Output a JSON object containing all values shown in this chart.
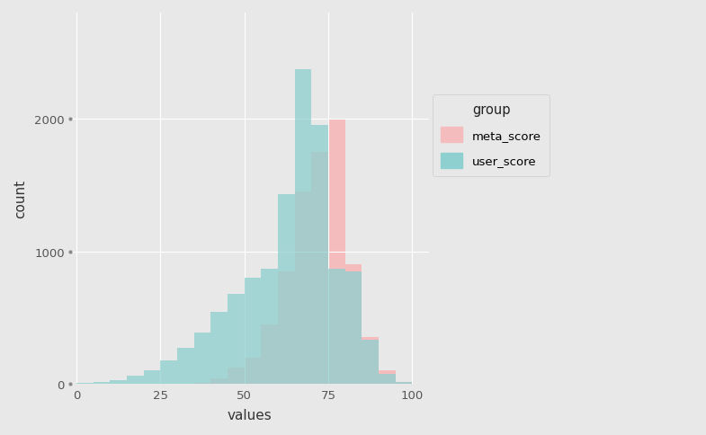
{
  "title": "",
  "xlabel": "values",
  "ylabel": "count",
  "legend_title": "group",
  "legend_labels": [
    "meta_score",
    "user_score"
  ],
  "meta_color": "#F4BCBC",
  "user_color": "#8ECFCF",
  "background_color": "#E8E8E8",
  "grid_color": "#FFFFFF",
  "xlim": [
    -2,
    105
  ],
  "ylim": [
    0,
    2800
  ],
  "yticks": [
    0,
    1000,
    2000
  ],
  "xticks": [
    0,
    25,
    50,
    75,
    100
  ],
  "bin_edges": [
    0,
    5,
    10,
    15,
    20,
    25,
    30,
    35,
    40,
    45,
    50,
    55,
    60,
    65,
    70,
    75,
    80,
    85,
    90,
    95,
    100
  ],
  "meta_counts": [
    0,
    0,
    0,
    0,
    0,
    0,
    0,
    10,
    40,
    120,
    200,
    450,
    850,
    1450,
    1750,
    2000,
    900,
    350,
    100,
    15
  ],
  "user_counts": [
    5,
    15,
    30,
    65,
    100,
    175,
    275,
    390,
    540,
    680,
    800,
    870,
    1430,
    2370,
    1950,
    870,
    850,
    330,
    75,
    15
  ]
}
